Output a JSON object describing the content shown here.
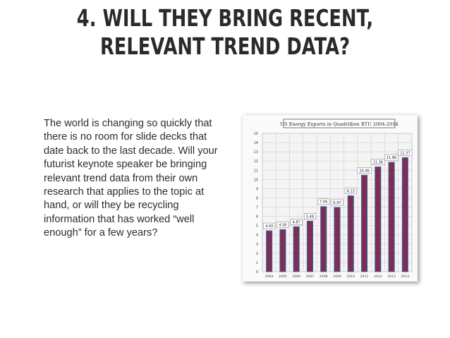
{
  "slide": {
    "title_line1": "4. WILL THEY BRING RECENT,",
    "title_line2": "RELEVANT TREND DATA?",
    "body": "The world is changing so quickly that there is no room for slide decks that date back to the last decade. Will your futurist keynote speaker be bringing relevant trend data from their own research that applies to the topic at hand, or will they be recycling information that has worked “well enough” for a few years?"
  },
  "chart_data": {
    "type": "bar",
    "title": "US Energy Exports in Quadrillion BTU 2004-2014",
    "categories": [
      "2004",
      "2005",
      "2006",
      "2007",
      "2008",
      "2009",
      "2010",
      "2011",
      "2012",
      "2013",
      "2014"
    ],
    "values": [
      4.43,
      4.56,
      4.87,
      5.48,
      7.06,
      6.97,
      8.23,
      10.46,
      11.36,
      11.86,
      12.37
    ],
    "value_labels": [
      "4.43",
      "4.56",
      "4.87",
      "5.48",
      "7.06",
      "6.97",
      "8.23",
      "10.46",
      "11.36",
      "11.86",
      "12.37"
    ],
    "ylim": [
      0,
      15
    ],
    "yticks": [
      "0",
      "1",
      "2",
      "3",
      "4",
      "5",
      "6",
      "7",
      "8",
      "9",
      "10",
      "11",
      "12",
      "13",
      "14",
      "15"
    ],
    "xlabel": "",
    "ylabel": "",
    "grid": true,
    "colors": {
      "bar": "#7c2f52",
      "bar_edge": "#3f63a6",
      "grid": "#d4d4d4",
      "plot_bg": "#f4f4f4"
    }
  }
}
